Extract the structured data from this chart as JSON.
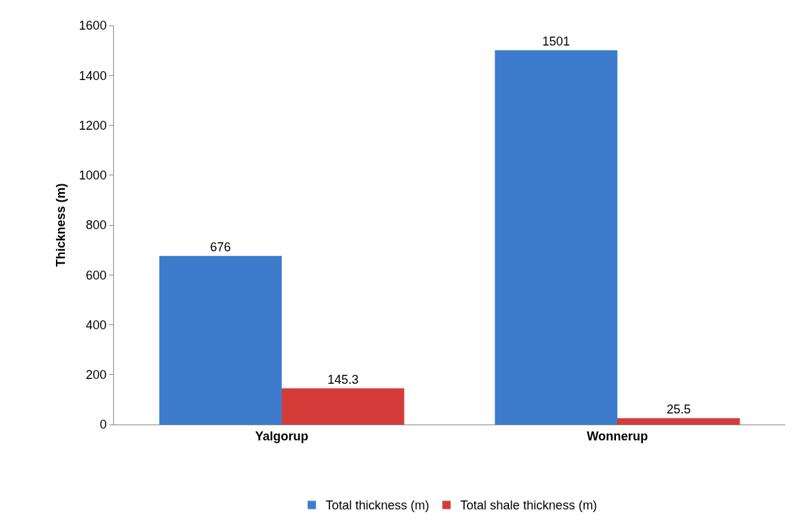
{
  "chart_data": {
    "type": "bar",
    "ylabel": "Thickness (m)",
    "categories": [
      "Yalgorup",
      "Wonnerup"
    ],
    "series": [
      {
        "name": "Total thickness (m)",
        "color": "#3d7ccc",
        "values": [
          676,
          1501
        ]
      },
      {
        "name": "Total shale thickness (m)",
        "color": "#d43c3a",
        "values": [
          145.3,
          25.5
        ]
      }
    ],
    "ylim": [
      0,
      1600
    ],
    "yticks": [
      0,
      200,
      400,
      600,
      800,
      1000,
      1200,
      1400,
      1600
    ],
    "data_labels": true,
    "legend": "bottom"
  }
}
